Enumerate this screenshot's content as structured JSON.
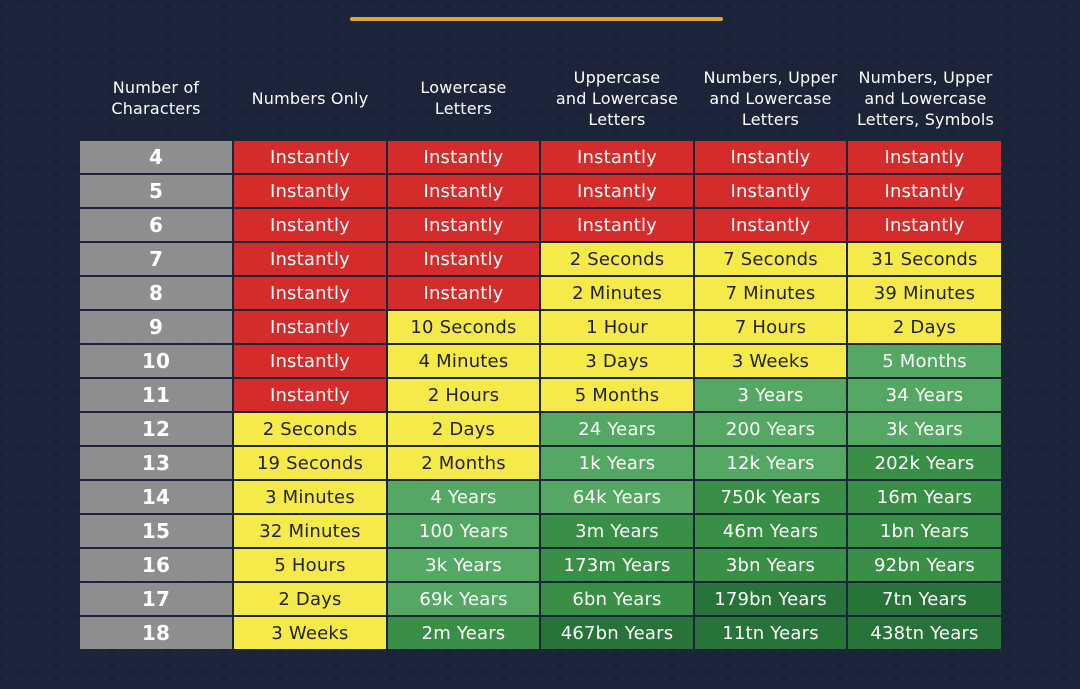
{
  "headers": [
    "Number of\nCharacters",
    "Numbers Only",
    "Lowercase\nLetters",
    "Uppercase\nand  Lowercase\nLetters",
    "Numbers, Upper\nand Lowercase\nLetters",
    "Numbers, Upper\nand Lowercase\nLetters, Symbols"
  ],
  "colors": {
    "red": "#d42b2b",
    "yellow": "#f6e94a",
    "lgreen": "#55a864",
    "green": "#3a8f46",
    "dgreen": "#27733a",
    "gray": "#8e8e8e",
    "accent": "#e2a73a",
    "background": "#1b2438"
  },
  "rows": [
    {
      "chars": "4",
      "cells": [
        [
          "Instantly",
          "red"
        ],
        [
          "Instantly",
          "red"
        ],
        [
          "Instantly",
          "red"
        ],
        [
          "Instantly",
          "red"
        ],
        [
          "Instantly",
          "red"
        ]
      ]
    },
    {
      "chars": "5",
      "cells": [
        [
          "Instantly",
          "red"
        ],
        [
          "Instantly",
          "red"
        ],
        [
          "Instantly",
          "red"
        ],
        [
          "Instantly",
          "red"
        ],
        [
          "Instantly",
          "red"
        ]
      ]
    },
    {
      "chars": "6",
      "cells": [
        [
          "Instantly",
          "red"
        ],
        [
          "Instantly",
          "red"
        ],
        [
          "Instantly",
          "red"
        ],
        [
          "Instantly",
          "red"
        ],
        [
          "Instantly",
          "red"
        ]
      ]
    },
    {
      "chars": "7",
      "cells": [
        [
          "Instantly",
          "red"
        ],
        [
          "Instantly",
          "red"
        ],
        [
          "2 Seconds",
          "yellow"
        ],
        [
          "7 Seconds",
          "yellow"
        ],
        [
          "31 Seconds",
          "yellow"
        ]
      ]
    },
    {
      "chars": "8",
      "cells": [
        [
          "Instantly",
          "red"
        ],
        [
          "Instantly",
          "red"
        ],
        [
          "2 Minutes",
          "yellow"
        ],
        [
          "7 Minutes",
          "yellow"
        ],
        [
          "39 Minutes",
          "yellow"
        ]
      ]
    },
    {
      "chars": "9",
      "cells": [
        [
          "Instantly",
          "red"
        ],
        [
          "10 Seconds",
          "yellow"
        ],
        [
          "1 Hour",
          "yellow"
        ],
        [
          "7 Hours",
          "yellow"
        ],
        [
          "2 Days",
          "yellow"
        ]
      ]
    },
    {
      "chars": "10",
      "cells": [
        [
          "Instantly",
          "red"
        ],
        [
          "4 Minutes",
          "yellow"
        ],
        [
          "3 Days",
          "yellow"
        ],
        [
          "3 Weeks",
          "yellow"
        ],
        [
          "5 Months",
          "lgreen"
        ]
      ]
    },
    {
      "chars": "11",
      "cells": [
        [
          "Instantly",
          "red"
        ],
        [
          "2 Hours",
          "yellow"
        ],
        [
          "5 Months",
          "yellow"
        ],
        [
          "3 Years",
          "lgreen"
        ],
        [
          "34 Years",
          "lgreen"
        ]
      ]
    },
    {
      "chars": "12",
      "cells": [
        [
          "2 Seconds",
          "yellow"
        ],
        [
          "2 Days",
          "yellow"
        ],
        [
          "24 Years",
          "lgreen"
        ],
        [
          "200 Years",
          "lgreen"
        ],
        [
          "3k Years",
          "lgreen"
        ]
      ]
    },
    {
      "chars": "13",
      "cells": [
        [
          "19 Seconds",
          "yellow"
        ],
        [
          "2 Months",
          "yellow"
        ],
        [
          "1k Years",
          "lgreen"
        ],
        [
          "12k Years",
          "lgreen"
        ],
        [
          "202k Years",
          "green"
        ]
      ]
    },
    {
      "chars": "14",
      "cells": [
        [
          "3 Minutes",
          "yellow"
        ],
        [
          "4 Years",
          "lgreen"
        ],
        [
          "64k Years",
          "lgreen"
        ],
        [
          "750k Years",
          "green"
        ],
        [
          "16m Years",
          "green"
        ]
      ]
    },
    {
      "chars": "15",
      "cells": [
        [
          "32 Minutes",
          "yellow"
        ],
        [
          "100 Years",
          "lgreen"
        ],
        [
          "3m Years",
          "green"
        ],
        [
          "46m Years",
          "green"
        ],
        [
          "1bn Years",
          "green"
        ]
      ]
    },
    {
      "chars": "16",
      "cells": [
        [
          "5 Hours",
          "yellow"
        ],
        [
          "3k Years",
          "lgreen"
        ],
        [
          "173m Years",
          "green"
        ],
        [
          "3bn Years",
          "green"
        ],
        [
          "92bn Years",
          "green"
        ]
      ]
    },
    {
      "chars": "17",
      "cells": [
        [
          "2 Days",
          "yellow"
        ],
        [
          "69k Years",
          "lgreen"
        ],
        [
          "6bn Years",
          "green"
        ],
        [
          "179bn Years",
          "dgreen"
        ],
        [
          "7tn Years",
          "dgreen"
        ]
      ]
    },
    {
      "chars": "18",
      "cells": [
        [
          "3 Weeks",
          "yellow"
        ],
        [
          "2m Years",
          "green"
        ],
        [
          "467bn Years",
          "dgreen"
        ],
        [
          "11tn Years",
          "dgreen"
        ],
        [
          "438tn Years",
          "dgreen"
        ]
      ]
    }
  ]
}
